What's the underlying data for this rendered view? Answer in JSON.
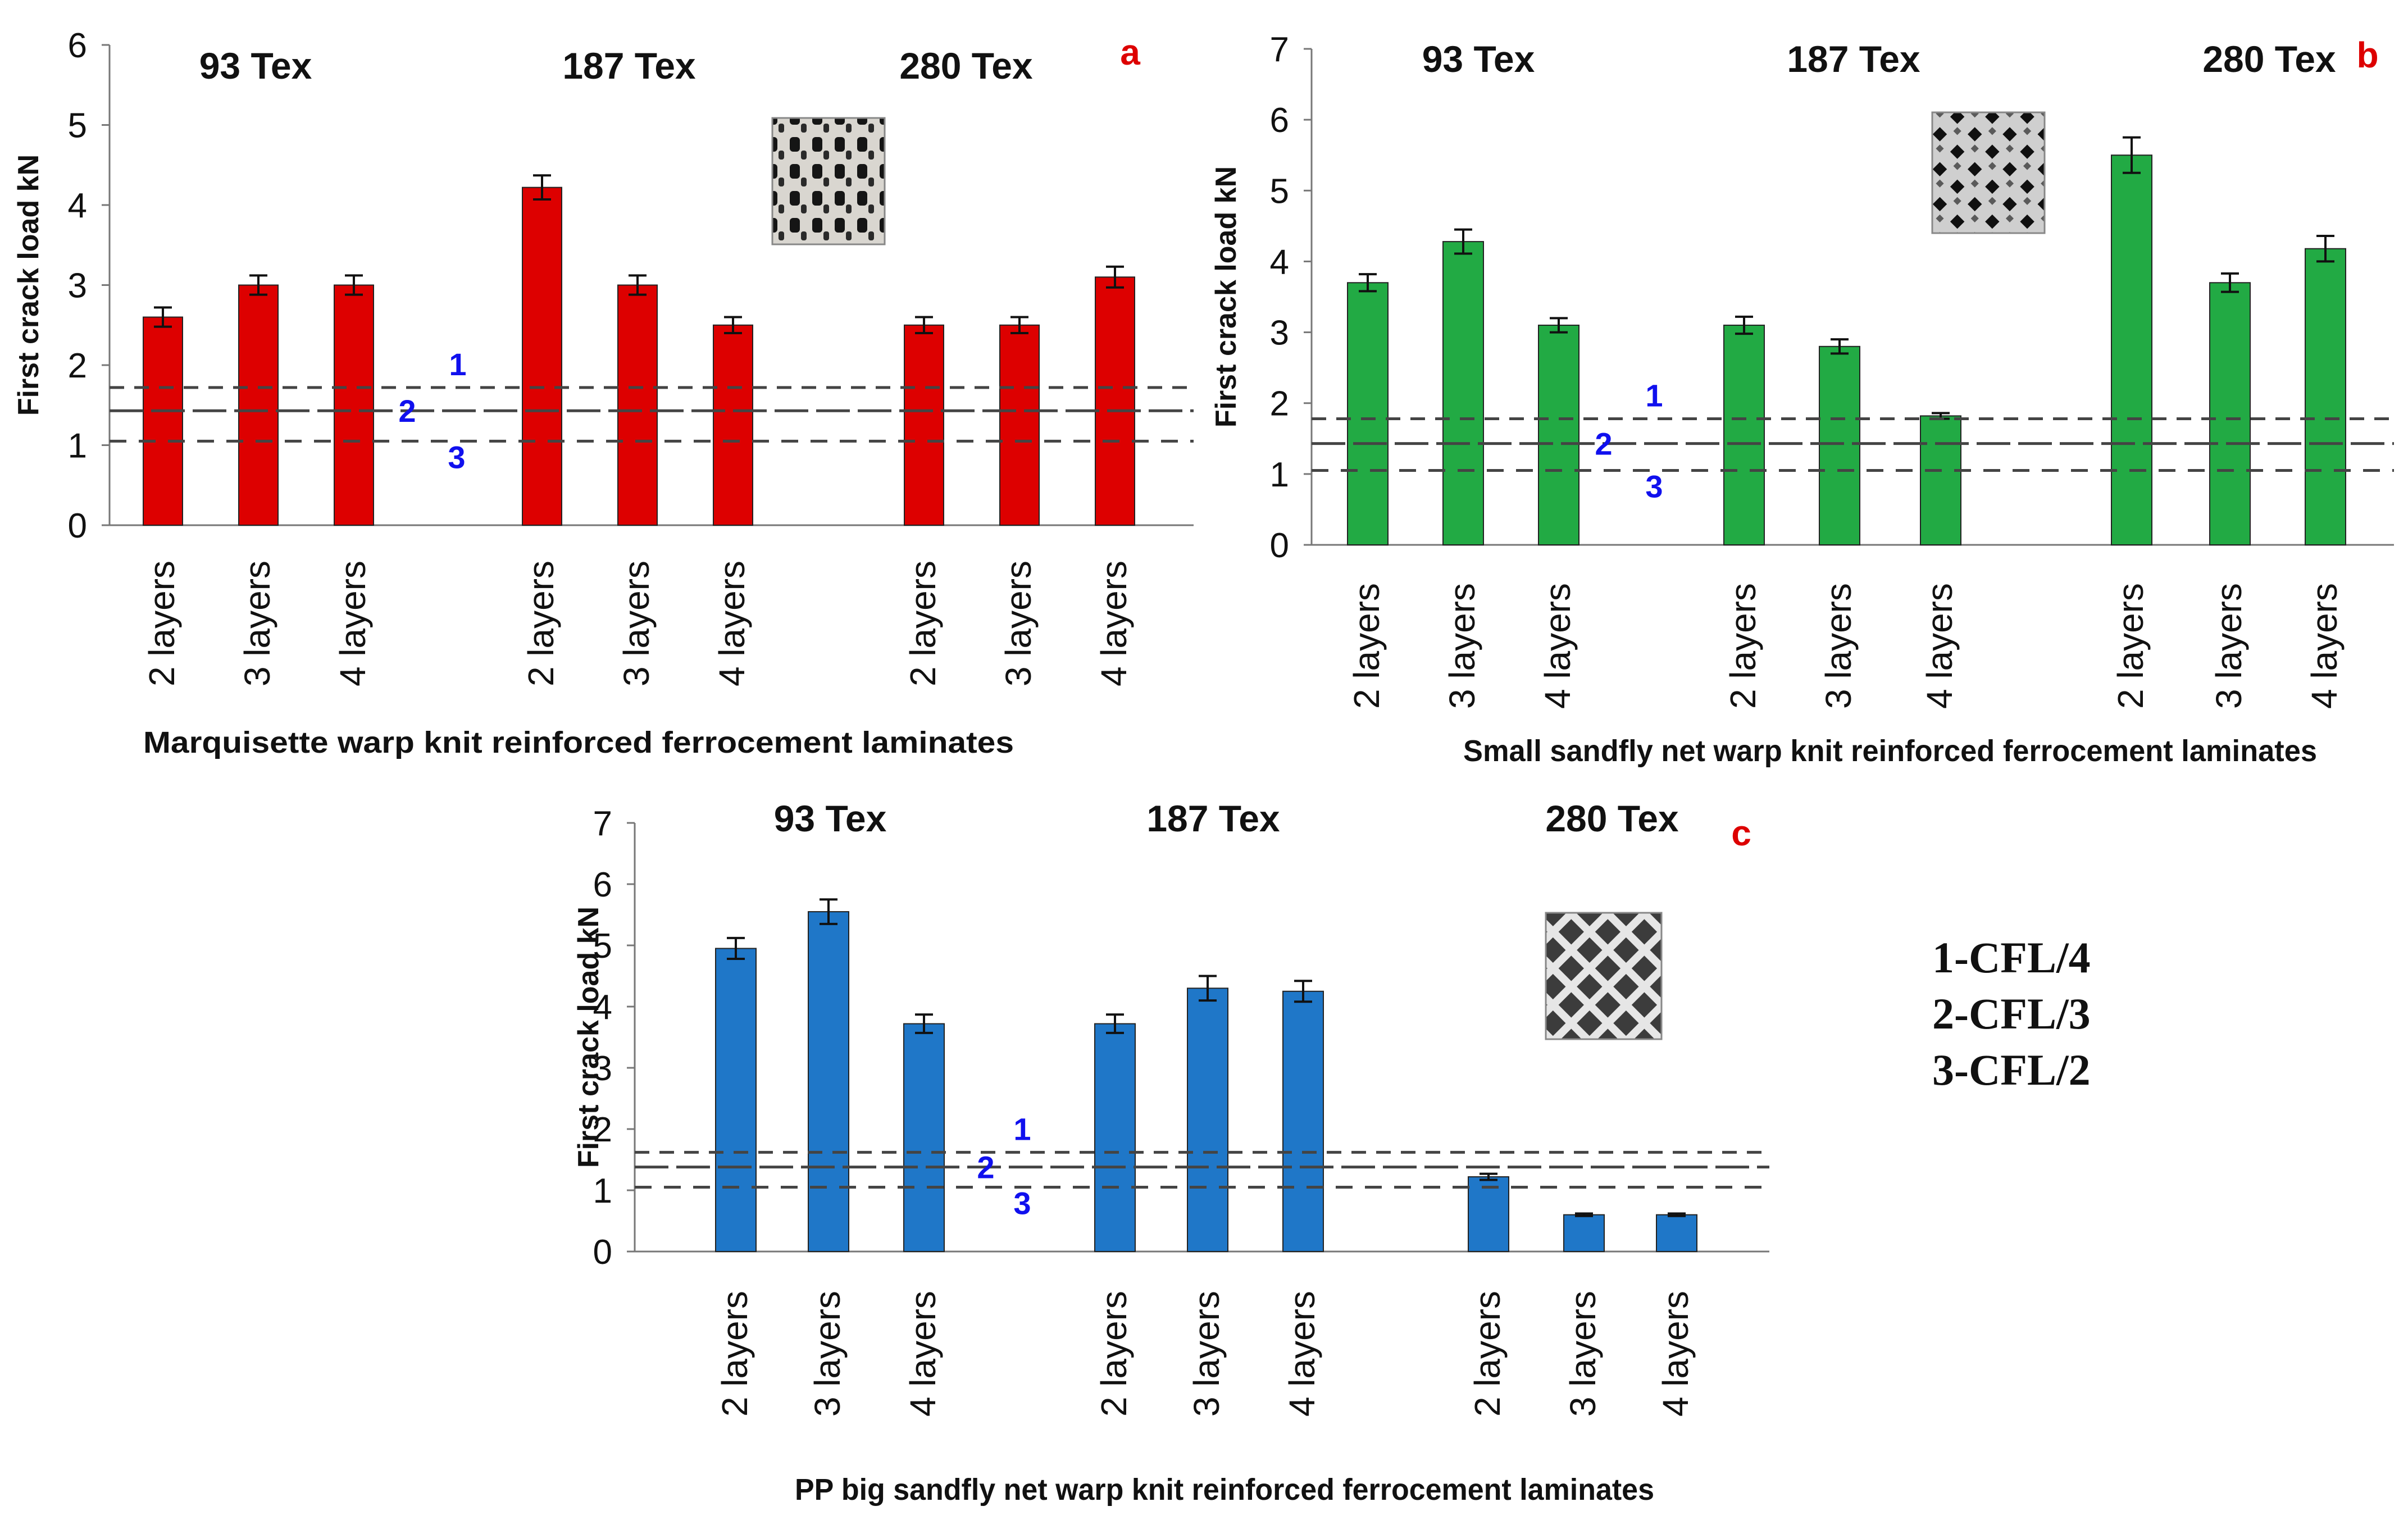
{
  "chart_data": [
    {
      "type": "bar",
      "panel_label": "a",
      "title": "",
      "xlabel": "Marquisette warp knit reinforced ferrocement laminates",
      "ylabel": "First crack load kN",
      "ylim": [
        0,
        6
      ],
      "yticks": [
        "0",
        "1",
        "2",
        "3",
        "4",
        "5",
        "6"
      ],
      "color": "#dd0000",
      "groups": [
        {
          "name": "93 Tex",
          "categories": [
            "2 layers",
            "3 layers",
            "4 layers"
          ],
          "values": [
            2.6,
            3.0,
            3.0
          ],
          "errors": [
            0.12,
            0.12,
            0.12
          ]
        },
        {
          "name": "187 Tex",
          "categories": [
            "2 layers",
            "3 layers",
            "4 layers"
          ],
          "values": [
            4.22,
            3.0,
            2.5
          ],
          "errors": [
            0.15,
            0.12,
            0.1
          ]
        },
        {
          "name": "280 Tex",
          "categories": [
            "2 layers",
            "3 layers",
            "4 layers"
          ],
          "values": [
            2.5,
            2.5,
            3.1
          ],
          "errors": [
            0.1,
            0.1,
            0.13
          ]
        }
      ],
      "reference_lines": [
        {
          "label": "1",
          "value": 1.72
        },
        {
          "label": "2",
          "value": 1.43
        },
        {
          "label": "3",
          "value": 1.05
        }
      ]
    },
    {
      "type": "bar",
      "panel_label": "b",
      "title": "",
      "xlabel": "Small sandfly net warp knit reinforced ferrocement laminates",
      "ylabel": "First crack load kN",
      "ylim": [
        0,
        7
      ],
      "yticks": [
        "0",
        "1",
        "2",
        "3",
        "4",
        "5",
        "6",
        "7"
      ],
      "color": "#22aa44",
      "groups": [
        {
          "name": "93 Tex",
          "categories": [
            "2 layers",
            "3 layers",
            "4 layers"
          ],
          "values": [
            3.7,
            4.28,
            3.1
          ],
          "errors": [
            0.12,
            0.17,
            0.1
          ]
        },
        {
          "name": "187 Tex",
          "categories": [
            "2 layers",
            "3 layers",
            "4 layers"
          ],
          "values": [
            3.1,
            2.8,
            1.82
          ],
          "errors": [
            0.12,
            0.1,
            0.04
          ]
        },
        {
          "name": "280 Tex",
          "categories": [
            "2 layers",
            "3 layers",
            "4 layers"
          ],
          "values": [
            5.5,
            3.7,
            4.18
          ],
          "errors": [
            0.25,
            0.13,
            0.18
          ]
        }
      ],
      "reference_lines": [
        {
          "label": "1",
          "value": 1.78
        },
        {
          "label": "2",
          "value": 1.43
        },
        {
          "label": "3",
          "value": 1.05
        }
      ]
    },
    {
      "type": "bar",
      "panel_label": "c",
      "title": "",
      "xlabel": "PP big sandfly net warp knit reinforced ferrocement laminates",
      "ylabel": "First crack load kN",
      "ylim": [
        0,
        7
      ],
      "yticks": [
        "0",
        "1",
        "2",
        "3",
        "4",
        "5",
        "6",
        "7"
      ],
      "color": "#1f77c8",
      "groups": [
        {
          "name": "93 Tex",
          "categories": [
            "2 layers",
            "3 layers",
            "4 layers"
          ],
          "values": [
            4.95,
            5.55,
            3.72
          ],
          "errors": [
            0.17,
            0.2,
            0.15
          ]
        },
        {
          "name": "187 Tex",
          "categories": [
            "2 layers",
            "3 layers",
            "4 layers"
          ],
          "values": [
            3.72,
            4.3,
            4.25
          ],
          "errors": [
            0.15,
            0.2,
            0.17
          ]
        },
        {
          "name": "280 Tex",
          "categories": [
            "2 layers",
            "3 layers",
            "4 layers"
          ],
          "values": [
            1.22,
            0.6,
            0.6
          ],
          "errors": [
            0.05,
            0.02,
            0.02
          ]
        }
      ],
      "reference_lines": [
        {
          "label": "1",
          "value": 1.62
        },
        {
          "label": "2",
          "value": 1.38
        },
        {
          "label": "3",
          "value": 1.05
        }
      ]
    }
  ],
  "legend": {
    "items": [
      "1-CFL/4",
      "2-CFL/3",
      "3-CFL/2"
    ]
  },
  "colors": {
    "panel_label": "#dd0000",
    "reference_label": "#1010ee",
    "reference_line": "#444444"
  }
}
